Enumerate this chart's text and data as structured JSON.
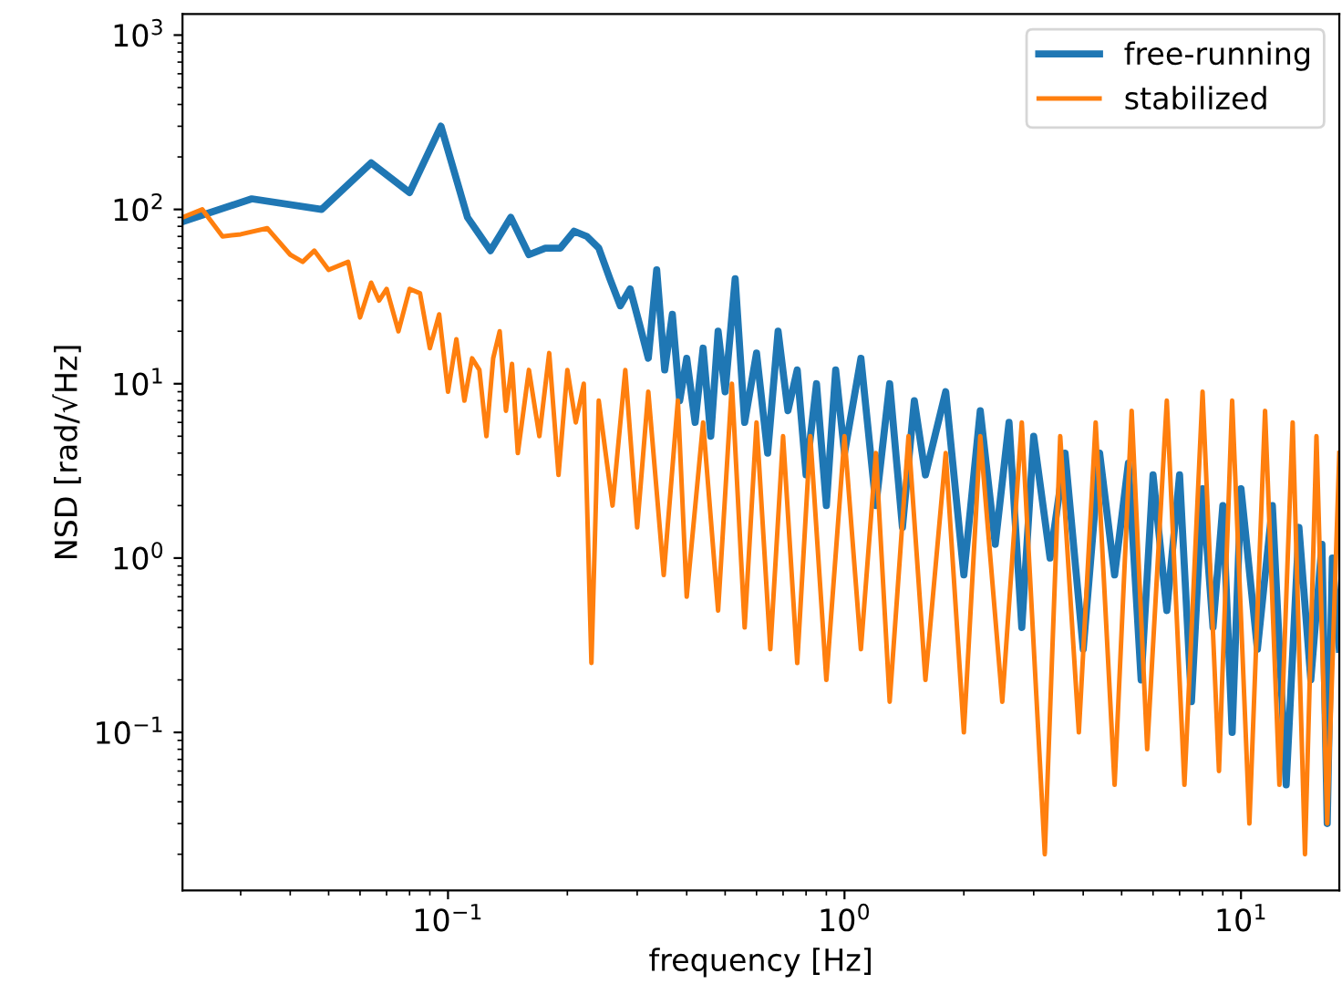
{
  "chart_data": {
    "type": "line",
    "xlabel": "frequency [Hz]",
    "ylabel": "NSD [rad/√Hz]",
    "log": "xy",
    "grid": false,
    "legend": "top right",
    "marker": "none",
    "line_style": "solid",
    "xlim": [
      0.0214,
      17.7
    ],
    "ylim": [
      0.0124,
      1320
    ],
    "xticks": [
      {
        "value": 0.1,
        "label": "10$^{−1}$"
      },
      {
        "value": 1,
        "label": "10$^{0}$"
      },
      {
        "value": 10,
        "label": "10$^{1}$"
      }
    ],
    "yticks": [
      {
        "value": 0.1,
        "label": "10$^{−1}$"
      },
      {
        "value": 1,
        "label": "10$^{0}$"
      },
      {
        "value": 10,
        "label": "10$^{1}$"
      },
      {
        "value": 100,
        "label": "10$^{2}$"
      },
      {
        "value": 1000,
        "label": "10$^{3}$"
      }
    ],
    "series": [
      {
        "name": "free-running",
        "color": "#1f77b4",
        "x": [
          0.0214,
          0.032,
          0.048,
          0.064,
          0.08,
          0.096,
          0.112,
          0.128,
          0.144,
          0.16,
          0.176,
          0.192,
          0.208,
          0.224,
          0.24,
          0.256,
          0.272,
          0.288,
          0.304,
          0.32,
          0.336,
          0.352,
          0.368,
          0.384,
          0.4,
          0.42,
          0.44,
          0.46,
          0.48,
          0.5,
          0.53,
          0.56,
          0.6,
          0.64,
          0.68,
          0.72,
          0.76,
          0.8,
          0.85,
          0.9,
          0.95,
          1.0,
          1.1,
          1.2,
          1.3,
          1.4,
          1.5,
          1.6,
          1.8,
          2.0,
          2.2,
          2.4,
          2.6,
          2.8,
          3.0,
          3.3,
          3.6,
          4.0,
          4.4,
          4.8,
          5.2,
          5.6,
          6.0,
          6.5,
          7.0,
          7.5,
          8.0,
          8.5,
          9.0,
          9.5,
          10,
          11,
          12,
          13,
          14,
          15,
          16,
          16.5,
          17,
          17.7
        ],
        "values": [
          85,
          115,
          100,
          185,
          125,
          300,
          90,
          58,
          90,
          55,
          60,
          60,
          75,
          70,
          60,
          40,
          28,
          35,
          22,
          14,
          45,
          12,
          25,
          8,
          14,
          6,
          16,
          5,
          20,
          9,
          40,
          6,
          15,
          4,
          20,
          7,
          12,
          3,
          10,
          2,
          12,
          4,
          14,
          2,
          10,
          1.5,
          8,
          3,
          9,
          0.8,
          7,
          1.2,
          6,
          0.4,
          5,
          1,
          4,
          0.3,
          4,
          0.8,
          3.5,
          0.2,
          3,
          0.5,
          3,
          0.15,
          2.5,
          0.4,
          2,
          0.1,
          2.5,
          0.3,
          2,
          0.05,
          1.5,
          0.2,
          1.2,
          0.03,
          1,
          0.3
        ]
      },
      {
        "name": "stabilized",
        "color": "#ff7f0e",
        "x": [
          0.0214,
          0.024,
          0.027,
          0.03,
          0.035,
          0.04,
          0.043,
          0.046,
          0.05,
          0.056,
          0.06,
          0.064,
          0.067,
          0.07,
          0.075,
          0.08,
          0.085,
          0.09,
          0.095,
          0.1,
          0.105,
          0.11,
          0.115,
          0.12,
          0.125,
          0.13,
          0.135,
          0.14,
          0.145,
          0.15,
          0.16,
          0.17,
          0.18,
          0.19,
          0.2,
          0.21,
          0.22,
          0.23,
          0.24,
          0.26,
          0.28,
          0.3,
          0.32,
          0.35,
          0.38,
          0.4,
          0.44,
          0.48,
          0.52,
          0.56,
          0.6,
          0.65,
          0.7,
          0.76,
          0.82,
          0.9,
          1.0,
          1.1,
          1.2,
          1.3,
          1.45,
          1.6,
          1.8,
          2.0,
          2.2,
          2.5,
          2.8,
          3.2,
          3.5,
          3.9,
          4.3,
          4.8,
          5.3,
          5.8,
          6.5,
          7.2,
          8,
          8.8,
          9.5,
          10.5,
          11.5,
          12.5,
          13.5,
          14.5,
          15.5,
          16.5,
          17.7
        ],
        "values": [
          90,
          100,
          70,
          72,
          78,
          55,
          50,
          58,
          45,
          50,
          24,
          38,
          30,
          35,
          20,
          35,
          33,
          16,
          25,
          9,
          18,
          8,
          14,
          12,
          5,
          14,
          20,
          7,
          13,
          4,
          12,
          5,
          15,
          3,
          12,
          6,
          10,
          0.25,
          8,
          2,
          12,
          1.5,
          9,
          0.8,
          8,
          0.6,
          6,
          0.5,
          10,
          0.4,
          6,
          0.3,
          5,
          0.25,
          5,
          0.2,
          5,
          0.3,
          4,
          0.15,
          5,
          0.2,
          4,
          0.1,
          5,
          0.15,
          6,
          0.02,
          5,
          0.1,
          6,
          0.05,
          7,
          0.08,
          8,
          0.05,
          9,
          0.06,
          8,
          0.03,
          7,
          0.05,
          6,
          0.02,
          5,
          0.03,
          4
        ]
      }
    ]
  }
}
